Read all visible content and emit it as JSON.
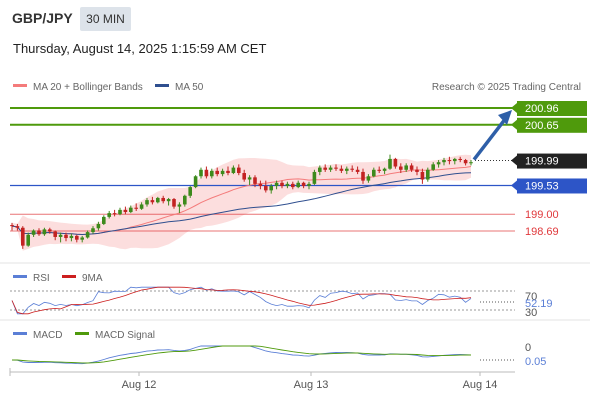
{
  "header": {
    "symbol": "GBP/JPY",
    "timeframe": "30 MIN",
    "datetime": "Thursday, August 14, 2025 1:15:59 AM CET"
  },
  "colors": {
    "green_level": "#4f9a0c",
    "blue_level": "#2d55c7",
    "red_level": "#e0393c",
    "candle_up": "#3d8a1c",
    "candle_down": "#c32222",
    "bollinger_fill": "#fbd3d3",
    "ma20": "#f47b7b",
    "ma50": "#2f4f8f",
    "arrow": "#2e5fa8",
    "price_box": "#222222",
    "rsi_line": "#5b7fd6",
    "rsi_ma": "#cc1f1f",
    "macd_line": "#5b7fd6",
    "macd_signal": "#4f9a0c"
  },
  "chart_data": [
    {
      "type": "candlestick",
      "legend": [
        {
          "name": "MA 20 + Bollinger Bands",
          "color": "#f47b7b"
        },
        {
          "name": "MA 50",
          "color": "#2f4f8f"
        }
      ],
      "credit": "Research © 2025 Trading Central",
      "x_ticks": [
        "Aug 12",
        "Aug 13",
        "Aug 14"
      ],
      "ylim": [
        198.2,
        201.1
      ],
      "current_price": 199.99,
      "levels": [
        {
          "value": 200.96,
          "label": "200.96",
          "kind": "resistance"
        },
        {
          "value": 200.65,
          "label": "200.65",
          "kind": "resistance"
        },
        {
          "value": 199.53,
          "label": "199.53",
          "kind": "pivot"
        },
        {
          "value": 199.0,
          "label": "199.00",
          "kind": "support"
        },
        {
          "value": 198.69,
          "label": "198.69",
          "kind": "support"
        }
      ],
      "arrow": {
        "from": 199.99,
        "to": 200.96,
        "direction": "up"
      },
      "candles": [
        [
          198.8,
          198.84,
          198.7,
          198.78
        ],
        [
          198.78,
          198.82,
          198.7,
          198.75
        ],
        [
          198.75,
          198.78,
          198.36,
          198.42
        ],
        [
          198.42,
          198.66,
          198.4,
          198.62
        ],
        [
          198.62,
          198.72,
          198.58,
          198.7
        ],
        [
          198.7,
          198.74,
          198.6,
          198.63
        ],
        [
          198.63,
          198.75,
          198.6,
          198.72
        ],
        [
          198.72,
          198.75,
          198.64,
          198.68
        ],
        [
          198.68,
          198.7,
          198.52,
          198.58
        ],
        [
          198.58,
          198.66,
          198.48,
          198.62
        ],
        [
          198.62,
          198.66,
          198.5,
          198.56
        ],
        [
          198.56,
          198.64,
          198.5,
          198.6
        ],
        [
          198.6,
          198.62,
          198.48,
          198.53
        ],
        [
          198.53,
          198.6,
          198.48,
          198.57
        ],
        [
          198.57,
          198.7,
          198.55,
          198.67
        ],
        [
          198.67,
          198.78,
          198.64,
          198.74
        ],
        [
          198.74,
          198.86,
          198.7,
          198.82
        ],
        [
          198.82,
          198.98,
          198.8,
          198.95
        ],
        [
          198.95,
          199.06,
          198.92,
          199.02
        ],
        [
          199.02,
          199.08,
          198.96,
          199.0
        ],
        [
          199.0,
          199.12,
          198.98,
          199.08
        ],
        [
          199.08,
          199.14,
          199.0,
          199.04
        ],
        [
          199.04,
          199.16,
          199.02,
          199.12
        ],
        [
          199.12,
          199.2,
          199.06,
          199.1
        ],
        [
          199.1,
          199.22,
          199.08,
          199.18
        ],
        [
          199.18,
          199.3,
          199.14,
          199.26
        ],
        [
          199.26,
          199.32,
          199.18,
          199.22
        ],
        [
          199.22,
          199.32,
          199.2,
          199.3
        ],
        [
          199.3,
          199.34,
          199.2,
          199.24
        ],
        [
          199.24,
          199.3,
          199.16,
          199.28
        ],
        [
          199.28,
          199.3,
          199.1,
          199.14
        ],
        [
          199.14,
          199.22,
          199.02,
          199.18
        ],
        [
          199.18,
          199.36,
          199.14,
          199.34
        ],
        [
          199.34,
          199.52,
          199.3,
          199.5
        ],
        [
          199.5,
          199.72,
          199.48,
          199.7
        ],
        [
          199.7,
          199.86,
          199.66,
          199.82
        ],
        [
          199.82,
          199.88,
          199.66,
          199.7
        ],
        [
          199.7,
          199.84,
          199.66,
          199.8
        ],
        [
          199.8,
          199.86,
          199.7,
          199.74
        ],
        [
          199.74,
          199.84,
          199.7,
          199.8
        ],
        [
          199.8,
          199.88,
          199.72,
          199.76
        ],
        [
          199.76,
          199.9,
          199.74,
          199.86
        ],
        [
          199.86,
          199.92,
          199.72,
          199.76
        ],
        [
          199.76,
          199.82,
          199.6,
          199.64
        ],
        [
          199.64,
          199.72,
          199.54,
          199.68
        ],
        [
          199.68,
          199.72,
          199.5,
          199.56
        ],
        [
          199.56,
          199.62,
          199.46,
          199.52
        ],
        [
          199.52,
          199.62,
          199.4,
          199.44
        ],
        [
          199.44,
          199.56,
          199.38,
          199.52
        ],
        [
          199.52,
          199.62,
          199.46,
          199.58
        ],
        [
          199.58,
          199.62,
          199.48,
          199.52
        ],
        [
          199.52,
          199.6,
          199.48,
          199.56
        ],
        [
          199.56,
          199.6,
          199.46,
          199.5
        ],
        [
          199.5,
          199.62,
          199.48,
          199.58
        ],
        [
          199.58,
          199.6,
          199.48,
          199.52
        ],
        [
          199.52,
          199.6,
          199.46,
          199.56
        ],
        [
          199.56,
          199.82,
          199.54,
          199.78
        ],
        [
          199.78,
          199.9,
          199.72,
          199.86
        ],
        [
          199.86,
          199.92,
          199.78,
          199.82
        ],
        [
          199.82,
          199.9,
          199.78,
          199.86
        ],
        [
          199.86,
          199.92,
          199.8,
          199.84
        ],
        [
          199.84,
          199.9,
          199.76,
          199.8
        ],
        [
          199.8,
          199.88,
          199.74,
          199.84
        ],
        [
          199.84,
          199.9,
          199.78,
          199.82
        ],
        [
          199.82,
          199.88,
          199.74,
          199.78
        ],
        [
          199.78,
          199.84,
          199.56,
          199.62
        ],
        [
          199.62,
          199.74,
          199.58,
          199.7
        ],
        [
          199.7,
          199.86,
          199.68,
          199.82
        ],
        [
          199.82,
          199.88,
          199.76,
          199.8
        ],
        [
          199.8,
          199.86,
          199.74,
          199.84
        ],
        [
          199.84,
          200.1,
          199.82,
          200.02
        ],
        [
          200.02,
          200.04,
          199.84,
          199.88
        ],
        [
          199.88,
          199.94,
          199.76,
          199.82
        ],
        [
          199.82,
          199.94,
          199.78,
          199.9
        ],
        [
          199.9,
          199.94,
          199.78,
          199.82
        ],
        [
          199.82,
          199.88,
          199.72,
          199.78
        ],
        [
          199.78,
          199.84,
          199.56,
          199.64
        ],
        [
          199.64,
          199.86,
          199.6,
          199.82
        ],
        [
          199.82,
          199.96,
          199.8,
          199.92
        ],
        [
          199.92,
          200.0,
          199.86,
          199.96
        ],
        [
          199.96,
          200.04,
          199.9,
          200.0
        ],
        [
          200.0,
          200.06,
          199.92,
          199.98
        ],
        [
          199.98,
          200.04,
          199.92,
          200.02
        ],
        [
          200.02,
          200.06,
          199.96,
          200.0
        ],
        [
          200.0,
          200.02,
          199.9,
          199.94
        ],
        [
          199.94,
          200.0,
          199.9,
          199.96
        ]
      ]
    },
    {
      "type": "line",
      "legend": [
        {
          "name": "RSI",
          "color": "#5b7fd6"
        },
        {
          "name": "9MA",
          "color": "#cc1f1f"
        }
      ],
      "ticks": [
        "70",
        "30"
      ],
      "ylim": [
        30,
        70
      ],
      "last_value": "52.19"
    },
    {
      "type": "line",
      "legend": [
        {
          "name": "MACD",
          "color": "#5b7fd6"
        },
        {
          "name": "MACD Signal",
          "color": "#4f9a0c"
        }
      ],
      "ticks": [
        "0"
      ],
      "last_value": "0.05"
    }
  ]
}
